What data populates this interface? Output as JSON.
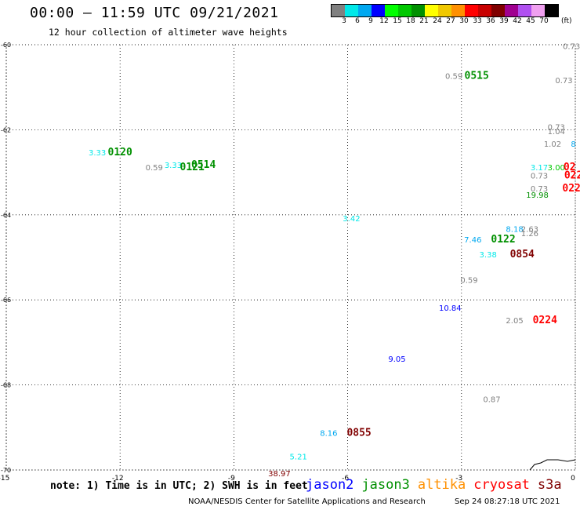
{
  "header": {
    "title": "00:00 – 11:59 UTC 09/21/2021",
    "subtitle": "12 hour collection of altimeter wave heights"
  },
  "legend": {
    "colors": [
      "#808080",
      "#00e8e8",
      "#00a8f0",
      "#0000ff",
      "#00ff00",
      "#00c800",
      "#009000",
      "#ffff00",
      "#f0c800",
      "#ff9000",
      "#ff0000",
      "#c80000",
      "#800000",
      "#a00090",
      "#b050f0",
      "#f0a0f0",
      "#000000"
    ],
    "labels": [
      "3",
      "6",
      "9",
      "12",
      "15",
      "18",
      "21",
      "24",
      "27",
      "30",
      "33",
      "36",
      "39",
      "42",
      "45",
      "70"
    ],
    "unit": "(ft)"
  },
  "chart_data": {
    "type": "scatter",
    "title": "00:00 – 11:59 UTC 09/21/2021",
    "subtitle": "12 hour collection of altimeter wave heights",
    "xlim": [
      -15,
      0
    ],
    "ylim": [
      -70,
      -60
    ],
    "x_ticks": [
      "-15",
      "-12",
      "-9",
      "-6",
      "-3",
      "0"
    ],
    "y_ticks": [
      "-60",
      "-62",
      "-64",
      "-66",
      "-68",
      "-70"
    ],
    "grid": true,
    "points": [
      {
        "x": -0.1,
        "y": -60.1,
        "label": "0.73",
        "color": "#808080"
      },
      {
        "x": -3.2,
        "y": -60.8,
        "label": "0.59",
        "color": "#808080"
      },
      {
        "x": -2.6,
        "y": -60.8,
        "label": "0515",
        "color": "#009000",
        "kind": "time"
      },
      {
        "x": -0.3,
        "y": -60.9,
        "label": "0.73",
        "color": "#808080"
      },
      {
        "x": -0.5,
        "y": -62.0,
        "label": "0.73",
        "color": "#808080"
      },
      {
        "x": -0.5,
        "y": -62.1,
        "label": "1.04",
        "color": "#808080"
      },
      {
        "x": -0.05,
        "y": -62.4,
        "label": "8",
        "color": "#00a8f0"
      },
      {
        "x": -0.6,
        "y": -62.4,
        "label": "1.02",
        "color": "#808080"
      },
      {
        "x": -12.6,
        "y": -62.6,
        "label": "3.33",
        "color": "#00e8e8"
      },
      {
        "x": -12.0,
        "y": -62.6,
        "label": "0120",
        "color": "#009000",
        "kind": "time"
      },
      {
        "x": -11.1,
        "y": -62.95,
        "label": "0.59",
        "color": "#808080"
      },
      {
        "x": -10.6,
        "y": -62.9,
        "label": "3.33",
        "color": "#00e8e8"
      },
      {
        "x": -10.1,
        "y": -62.95,
        "label": "0121",
        "color": "#009000",
        "kind": "time"
      },
      {
        "x": -9.8,
        "y": -62.9,
        "label": "0514",
        "color": "#009000",
        "kind": "time"
      },
      {
        "x": -0.95,
        "y": -62.95,
        "label": "3.17",
        "color": "#00e8e8"
      },
      {
        "x": -0.5,
        "y": -62.95,
        "label": "3.00",
        "color": "#00c800"
      },
      {
        "x": -0.15,
        "y": -62.95,
        "label": "02",
        "color": "#ff0000",
        "kind": "time"
      },
      {
        "x": -0.95,
        "y": -63.15,
        "label": "0.73",
        "color": "#808080"
      },
      {
        "x": -0.05,
        "y": -63.15,
        "label": "022",
        "color": "#ff0000",
        "kind": "time"
      },
      {
        "x": -0.95,
        "y": -63.45,
        "label": "0.73",
        "color": "#808080"
      },
      {
        "x": -0.1,
        "y": -63.45,
        "label": "022",
        "color": "#ff0000",
        "kind": "time"
      },
      {
        "x": -1.0,
        "y": -63.6,
        "label": "19.98",
        "color": "#009000"
      },
      {
        "x": -5.9,
        "y": -64.15,
        "label": "3.42",
        "color": "#00e8e8"
      },
      {
        "x": -1.6,
        "y": -64.4,
        "label": "8.18",
        "color": "#00a8f0"
      },
      {
        "x": -1.2,
        "y": -64.4,
        "label": "2.63",
        "color": "#808080"
      },
      {
        "x": -1.2,
        "y": -64.5,
        "label": "1.26",
        "color": "#808080"
      },
      {
        "x": -2.7,
        "y": -64.65,
        "label": "7.46",
        "color": "#00a8f0"
      },
      {
        "x": -1.9,
        "y": -64.65,
        "label": "0122",
        "color": "#009000",
        "kind": "time"
      },
      {
        "x": -2.3,
        "y": -65.0,
        "label": "3.38",
        "color": "#00e8e8"
      },
      {
        "x": -1.4,
        "y": -65.0,
        "label": "0854",
        "color": "#800000",
        "kind": "time"
      },
      {
        "x": -2.8,
        "y": -65.6,
        "label": "0.59",
        "color": "#808080"
      },
      {
        "x": -3.3,
        "y": -66.25,
        "label": "10.84",
        "color": "#0000ff"
      },
      {
        "x": -1.6,
        "y": -66.55,
        "label": "2.05",
        "color": "#808080"
      },
      {
        "x": -0.8,
        "y": -66.55,
        "label": "0224",
        "color": "#ff0000",
        "kind": "time"
      },
      {
        "x": -4.7,
        "y": -67.45,
        "label": "9.05",
        "color": "#0000ff"
      },
      {
        "x": -2.2,
        "y": -68.4,
        "label": "0.87",
        "color": "#808080"
      },
      {
        "x": -6.5,
        "y": -69.2,
        "label": "8.16",
        "color": "#00a8f0"
      },
      {
        "x": -5.7,
        "y": -69.2,
        "label": "0855",
        "color": "#800000",
        "kind": "time"
      },
      {
        "x": -7.3,
        "y": -69.75,
        "label": "5.21",
        "color": "#00e8e8"
      },
      {
        "x": -7.8,
        "y": -70.15,
        "label": "38.97",
        "color": "#800000"
      }
    ]
  },
  "note": "note: 1) Time is in UTC; 2) SWH is in feet",
  "satellites": [
    {
      "name": "jason2",
      "color": "#0000ff"
    },
    {
      "name": "jason3",
      "color": "#009000"
    },
    {
      "name": "altika",
      "color": "#ff9000"
    },
    {
      "name": "cryosat",
      "color": "#ff0000"
    },
    {
      "name": "s3a",
      "color": "#800000"
    }
  ],
  "footer": {
    "credit": "NOAA/NESDIS Center for Satellite Applications and Research",
    "timestamp": "Sep 24 08:27:18 UTC 2021"
  }
}
